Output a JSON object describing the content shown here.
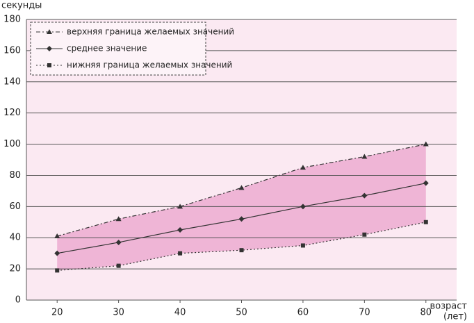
{
  "chart_data": {
    "type": "line",
    "ylabel": "секунды",
    "xlabel": "возраст",
    "xlabel_unit": "(лет)",
    "x": [
      20,
      30,
      40,
      50,
      60,
      70,
      80
    ],
    "xlim": [
      15,
      85
    ],
    "xticks": [
      20,
      30,
      40,
      50,
      60,
      70,
      80
    ],
    "ylim": [
      0,
      180
    ],
    "yticks": [
      0,
      20,
      40,
      60,
      80,
      100,
      120,
      140,
      160,
      180
    ],
    "grid": true,
    "legend": "top-left",
    "band_color": "#efb5d6",
    "background": "#fbe9f2",
    "series": [
      {
        "name": "верхняя граница желаемых значений",
        "color": "#333333",
        "marker": "triangle",
        "dash": "6 3 2 3",
        "values": [
          41,
          52,
          60,
          72,
          85,
          92,
          100
        ]
      },
      {
        "name": "среднее значение",
        "color": "#333333",
        "marker": "diamond",
        "dash": "none",
        "values": [
          30,
          37,
          45,
          52,
          60,
          67,
          75
        ]
      },
      {
        "name": "нижняя граница желаемых значений",
        "color": "#333333",
        "marker": "square",
        "dash": "2 3",
        "values": [
          19,
          22,
          30,
          32,
          35,
          42,
          50
        ]
      }
    ]
  }
}
